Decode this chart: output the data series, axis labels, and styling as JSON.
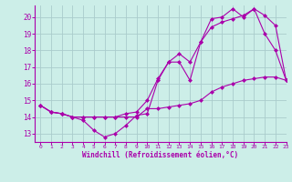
{
  "xlabel": "Windchill (Refroidissement éolien,°C)",
  "background_color": "#cceee8",
  "grid_color": "#aacccc",
  "line_color": "#aa00aa",
  "xlim": [
    -0.5,
    23
  ],
  "ylim": [
    12.5,
    20.7
  ],
  "yticks": [
    13,
    14,
    15,
    16,
    17,
    18,
    19,
    20
  ],
  "xticks": [
    0,
    1,
    2,
    3,
    4,
    5,
    6,
    7,
    8,
    9,
    10,
    11,
    12,
    13,
    14,
    15,
    16,
    17,
    18,
    19,
    20,
    21,
    22,
    23
  ],
  "hours": [
    0,
    1,
    2,
    3,
    4,
    5,
    6,
    7,
    8,
    9,
    10,
    11,
    12,
    13,
    14,
    15,
    16,
    17,
    18,
    19,
    20,
    21,
    22,
    23
  ],
  "line1": [
    14.7,
    14.3,
    14.2,
    14.0,
    13.8,
    13.2,
    12.8,
    13.0,
    13.5,
    14.1,
    14.2,
    16.2,
    17.3,
    17.3,
    16.2,
    18.5,
    19.9,
    20.0,
    20.5,
    20.0,
    20.5,
    19.0,
    18.0,
    16.2
  ],
  "line2": [
    14.7,
    14.3,
    14.2,
    14.0,
    14.0,
    14.0,
    14.0,
    14.0,
    14.2,
    14.3,
    15.0,
    16.3,
    17.3,
    17.8,
    17.3,
    18.5,
    19.4,
    19.7,
    19.9,
    20.1,
    20.5,
    20.1,
    19.5,
    16.2
  ],
  "line3": [
    14.7,
    14.3,
    14.2,
    14.0,
    14.0,
    14.0,
    14.0,
    14.0,
    14.0,
    14.0,
    14.5,
    14.5,
    14.6,
    14.7,
    14.8,
    15.0,
    15.5,
    15.8,
    16.0,
    16.2,
    16.3,
    16.4,
    16.4,
    16.2
  ]
}
